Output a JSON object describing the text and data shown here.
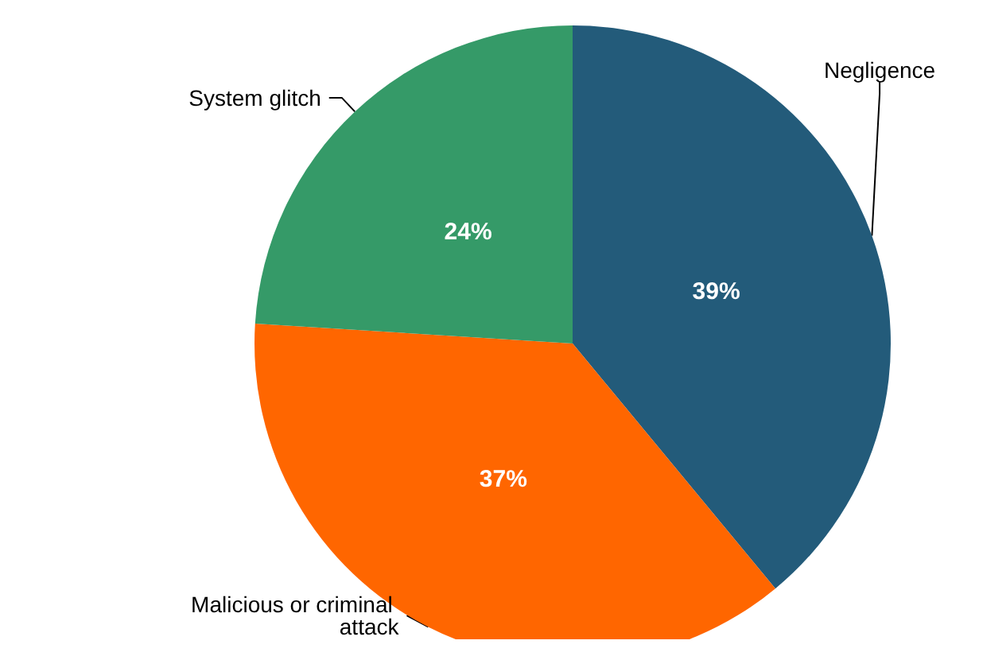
{
  "chart_data": {
    "type": "pie",
    "categories": [
      "Negligence",
      "Malicious or criminal attack",
      "System glitch"
    ],
    "values": [
      39,
      37,
      24
    ],
    "colors": [
      "#235b7a",
      "#ff6600",
      "#359a68"
    ],
    "value_labels": [
      "39%",
      "37%",
      "24%"
    ]
  }
}
